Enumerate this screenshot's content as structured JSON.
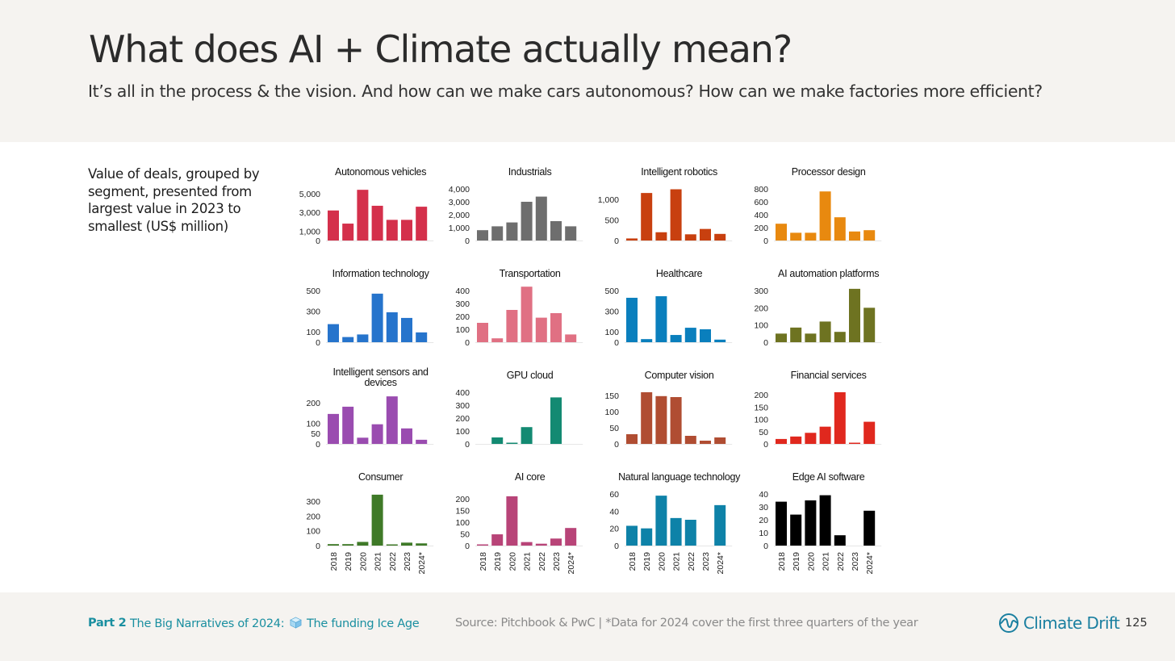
{
  "header": {
    "title": "What does AI + Climate actually mean?",
    "subtitle": "It’s all in the process & the vision. And how can we make cars autonomous? How can we make factories more efficient?"
  },
  "side_note": "Value of deals, grouped by segment, presented from largest value in 2023 to smallest (US$ million)",
  "footer": {
    "part_label": "Part 2",
    "narrative_before": "The Big Narratives of 2024:",
    "narrative_icon": "ice-cube-icon",
    "narrative_after": "The funding Ice Age",
    "source": "Source: Pitchbook & PwC  | *Data for 2024 cover the first three quarters of the year",
    "brand": "Climate Drift",
    "brand_icon": "climate-drift-wave-icon",
    "brand_color": "#1a7fa0",
    "page_number": "125"
  },
  "chart_data": [
    {
      "type": "bar",
      "title": "Autonomous vehicles",
      "color": "#d4304b",
      "categories": [
        "2018",
        "2019",
        "2020",
        "2021",
        "2022",
        "2023",
        "2024*"
      ],
      "values": [
        3200,
        1800,
        5400,
        3700,
        2200,
        2200,
        3600
      ],
      "ylim": [
        0,
        5500
      ],
      "yticks": [
        {
          "label": "5,000",
          "value": 5000
        },
        {
          "label": "3,000",
          "value": 3000
        },
        {
          "label": "1,000",
          "value": 1000
        },
        {
          "label": "0",
          "value": 0
        }
      ],
      "show_x_labels": false
    },
    {
      "type": "bar",
      "title": "Industrials",
      "color": "#6e6e6e",
      "categories": [
        "2018",
        "2019",
        "2020",
        "2021",
        "2022",
        "2023",
        "2024*"
      ],
      "values": [
        800,
        1100,
        1400,
        3000,
        3400,
        1500,
        1100
      ],
      "ylim": [
        0,
        4000
      ],
      "yticks": [
        {
          "label": "4,000",
          "value": 4000
        },
        {
          "label": "3,000",
          "value": 3000
        },
        {
          "label": "2,000",
          "value": 2000
        },
        {
          "label": "1,000",
          "value": 1000
        },
        {
          "label": "0",
          "value": 0
        }
      ],
      "show_x_labels": false
    },
    {
      "type": "bar",
      "title": "Intelligent robotics",
      "color": "#c8400f",
      "categories": [
        "2018",
        "2019",
        "2020",
        "2021",
        "2022",
        "2023",
        "2024*"
      ],
      "values": [
        50,
        1150,
        200,
        1240,
        150,
        280,
        160
      ],
      "ylim": [
        0,
        1250
      ],
      "yticks": [
        {
          "label": "1,000",
          "value": 1000
        },
        {
          "label": "500",
          "value": 500
        },
        {
          "label": "0",
          "value": 0
        }
      ],
      "show_x_labels": false
    },
    {
      "type": "bar",
      "title": "Processor design",
      "color": "#e8890f",
      "categories": [
        "2018",
        "2019",
        "2020",
        "2021",
        "2022",
        "2023",
        "2024*"
      ],
      "values": [
        260,
        120,
        120,
        760,
        360,
        140,
        160
      ],
      "ylim": [
        0,
        800
      ],
      "yticks": [
        {
          "label": "800",
          "value": 800
        },
        {
          "label": "600",
          "value": 600
        },
        {
          "label": "400",
          "value": 400
        },
        {
          "label": "200",
          "value": 200
        },
        {
          "label": "0",
          "value": 0
        }
      ],
      "show_x_labels": false
    },
    {
      "type": "bar",
      "title": "Information technology",
      "color": "#2674cc",
      "categories": [
        "2018",
        "2019",
        "2020",
        "2021",
        "2022",
        "2023",
        "2024*"
      ],
      "values": [
        175,
        50,
        75,
        470,
        290,
        235,
        95
      ],
      "ylim": [
        0,
        500
      ],
      "yticks": [
        {
          "label": "500",
          "value": 500
        },
        {
          "label": "300",
          "value": 300
        },
        {
          "label": "100",
          "value": 100
        },
        {
          "label": "0",
          "value": 0
        }
      ],
      "show_x_labels": false
    },
    {
      "type": "bar",
      "title": "Transportation",
      "color": "#e07083",
      "categories": [
        "2018",
        "2019",
        "2020",
        "2021",
        "2022",
        "2023",
        "2024*"
      ],
      "values": [
        150,
        30,
        250,
        430,
        190,
        225,
        60
      ],
      "ylim": [
        0,
        400
      ],
      "yticks": [
        {
          "label": "400",
          "value": 400
        },
        {
          "label": "300",
          "value": 300
        },
        {
          "label": "200",
          "value": 200
        },
        {
          "label": "100",
          "value": 100
        },
        {
          "label": "0",
          "value": 0
        }
      ],
      "show_x_labels": false
    },
    {
      "type": "bar",
      "title": "Healthcare",
      "color": "#0a7fbd",
      "categories": [
        "2018",
        "2019",
        "2020",
        "2021",
        "2022",
        "2023",
        "2024*"
      ],
      "values": [
        430,
        30,
        445,
        70,
        140,
        125,
        25
      ],
      "ylim": [
        0,
        500
      ],
      "yticks": [
        {
          "label": "500",
          "value": 500
        },
        {
          "label": "300",
          "value": 300
        },
        {
          "label": "100",
          "value": 100
        },
        {
          "label": "0",
          "value": 0
        }
      ],
      "show_x_labels": false
    },
    {
      "type": "bar",
      "title": "AI automation platforms",
      "color": "#6e7321",
      "categories": [
        "2018",
        "2019",
        "2020",
        "2021",
        "2022",
        "2023",
        "2024*"
      ],
      "values": [
        50,
        85,
        50,
        120,
        60,
        310,
        200
      ],
      "ylim": [
        0,
        300
      ],
      "yticks": [
        {
          "label": "300",
          "value": 300
        },
        {
          "label": "200",
          "value": 200
        },
        {
          "label": "100",
          "value": 100
        },
        {
          "label": "0",
          "value": 0
        }
      ],
      "show_x_labels": false
    },
    {
      "type": "bar",
      "title": "Intelligent sensors and devices",
      "color": "#9a4cb0",
      "categories": [
        "2018",
        "2019",
        "2020",
        "2021",
        "2022",
        "2023",
        "2024*"
      ],
      "values": [
        145,
        180,
        30,
        95,
        230,
        75,
        20
      ],
      "ylim": [
        0,
        250
      ],
      "yticks": [
        {
          "label": "200",
          "value": 200
        },
        {
          "label": "100",
          "value": 100
        },
        {
          "label": "50",
          "value": 50
        },
        {
          "label": "0",
          "value": 0
        }
      ],
      "show_x_labels": false
    },
    {
      "type": "bar",
      "title": "GPU cloud",
      "color": "#138a72",
      "categories": [
        "2018",
        "2019",
        "2020",
        "2021",
        "2022",
        "2023",
        "2024*"
      ],
      "values": [
        0,
        50,
        5,
        130,
        0,
        360,
        0
      ],
      "ylim": [
        0,
        400
      ],
      "yticks": [
        {
          "label": "400",
          "value": 400
        },
        {
          "label": "300",
          "value": 300
        },
        {
          "label": "200",
          "value": 200
        },
        {
          "label": "100",
          "value": 100
        },
        {
          "label": "0",
          "value": 0
        }
      ],
      "show_x_labels": false
    },
    {
      "type": "bar",
      "title": "Computer vision",
      "color": "#b04d32",
      "categories": [
        "2018",
        "2019",
        "2020",
        "2021",
        "2022",
        "2023",
        "2024*"
      ],
      "values": [
        30,
        160,
        148,
        145,
        25,
        10,
        20
      ],
      "ylim": [
        0,
        160
      ],
      "yticks": [
        {
          "label": "150",
          "value": 150
        },
        {
          "label": "100",
          "value": 100
        },
        {
          "label": "50",
          "value": 50
        },
        {
          "label": "0",
          "value": 0
        }
      ],
      "show_x_labels": false
    },
    {
      "type": "bar",
      "title": "Financial services",
      "color": "#e0281e",
      "categories": [
        "2018",
        "2019",
        "2020",
        "2021",
        "2022",
        "2023",
        "2024*"
      ],
      "values": [
        20,
        30,
        45,
        70,
        210,
        2,
        90
      ],
      "ylim": [
        0,
        210
      ],
      "yticks": [
        {
          "label": "200",
          "value": 200
        },
        {
          "label": "150",
          "value": 150
        },
        {
          "label": "100",
          "value": 100
        },
        {
          "label": "50",
          "value": 50
        },
        {
          "label": "0",
          "value": 0
        }
      ],
      "show_x_labels": false
    },
    {
      "type": "bar",
      "title": "Consumer",
      "color": "#3f7a28",
      "categories": [
        "2018",
        "2019",
        "2020",
        "2021",
        "2022",
        "2023",
        "2024*"
      ],
      "values": [
        10,
        10,
        25,
        345,
        8,
        20,
        15
      ],
      "ylim": [
        0,
        350
      ],
      "yticks": [
        {
          "label": "300",
          "value": 300
        },
        {
          "label": "200",
          "value": 200
        },
        {
          "label": "100",
          "value": 100
        },
        {
          "label": "0",
          "value": 0
        }
      ],
      "show_x_labels": true
    },
    {
      "type": "bar",
      "title": "AI core",
      "color": "#b84478",
      "categories": [
        "2018",
        "2019",
        "2020",
        "2021",
        "2022",
        "2023",
        "2024*"
      ],
      "values": [
        3,
        48,
        210,
        15,
        8,
        30,
        75
      ],
      "ylim": [
        0,
        220
      ],
      "yticks": [
        {
          "label": "200",
          "value": 200
        },
        {
          "label": "150",
          "value": 150
        },
        {
          "label": "100",
          "value": 100
        },
        {
          "label": "50",
          "value": 50
        },
        {
          "label": "0",
          "value": 0
        }
      ],
      "show_x_labels": true
    },
    {
      "type": "bar",
      "title": "Natural language technology",
      "color": "#0e82a8",
      "categories": [
        "2018",
        "2019",
        "2020",
        "2021",
        "2022",
        "2023",
        "2024*"
      ],
      "values": [
        23,
        20,
        58,
        32,
        30,
        0,
        47
      ],
      "ylim": [
        0,
        60
      ],
      "yticks": [
        {
          "label": "60",
          "value": 60
        },
        {
          "label": "40",
          "value": 40
        },
        {
          "label": "20",
          "value": 20
        },
        {
          "label": "0",
          "value": 0
        }
      ],
      "show_x_labels": true
    },
    {
      "type": "bar",
      "title": "Edge AI software",
      "color": "#000000",
      "categories": [
        "2018",
        "2019",
        "2020",
        "2021",
        "2022",
        "2023",
        "2024*"
      ],
      "values": [
        34,
        24,
        35,
        39,
        8,
        0,
        27
      ],
      "ylim": [
        0,
        40
      ],
      "yticks": [
        {
          "label": "40",
          "value": 40
        },
        {
          "label": "30",
          "value": 30
        },
        {
          "label": "20",
          "value": 20
        },
        {
          "label": "10",
          "value": 10
        },
        {
          "label": "0",
          "value": 0
        }
      ],
      "show_x_labels": true
    }
  ]
}
